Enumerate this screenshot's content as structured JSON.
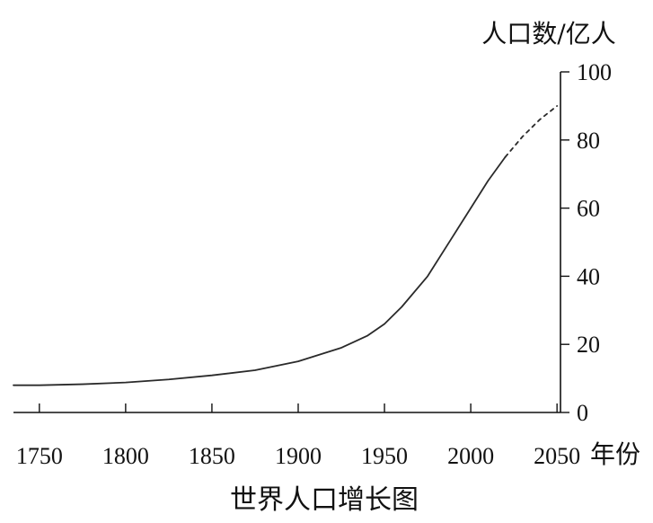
{
  "chart_data": {
    "type": "line",
    "title": "世界人口增长图",
    "xlabel": "年份",
    "ylabel": "人口数/亿人",
    "xlim": [
      1735,
      2052
    ],
    "ylim": [
      0,
      100
    ],
    "x_ticks": [
      1750,
      1800,
      1850,
      1900,
      1950,
      2000,
      2050
    ],
    "y_ticks": [
      0,
      20,
      40,
      60,
      80,
      100
    ],
    "grid": false,
    "series": [
      {
        "style": "solid",
        "x": [
          1735,
          1750,
          1775,
          1800,
          1825,
          1850,
          1875,
          1900,
          1925,
          1940,
          1950,
          1960,
          1975,
          1990,
          2000,
          2010,
          2020
        ],
        "y": [
          8,
          8,
          8.3,
          8.8,
          9.7,
          10.9,
          12.4,
          15,
          19,
          22.5,
          26,
          31,
          40,
          52,
          60,
          68,
          75
        ]
      },
      {
        "style": "dashed",
        "x": [
          2020,
          2030,
          2040,
          2050
        ],
        "y": [
          75,
          81,
          86,
          90
        ]
      }
    ],
    "colors": {
      "line": "#2a2a2a",
      "axis": "#111111",
      "text": "#111111"
    }
  }
}
